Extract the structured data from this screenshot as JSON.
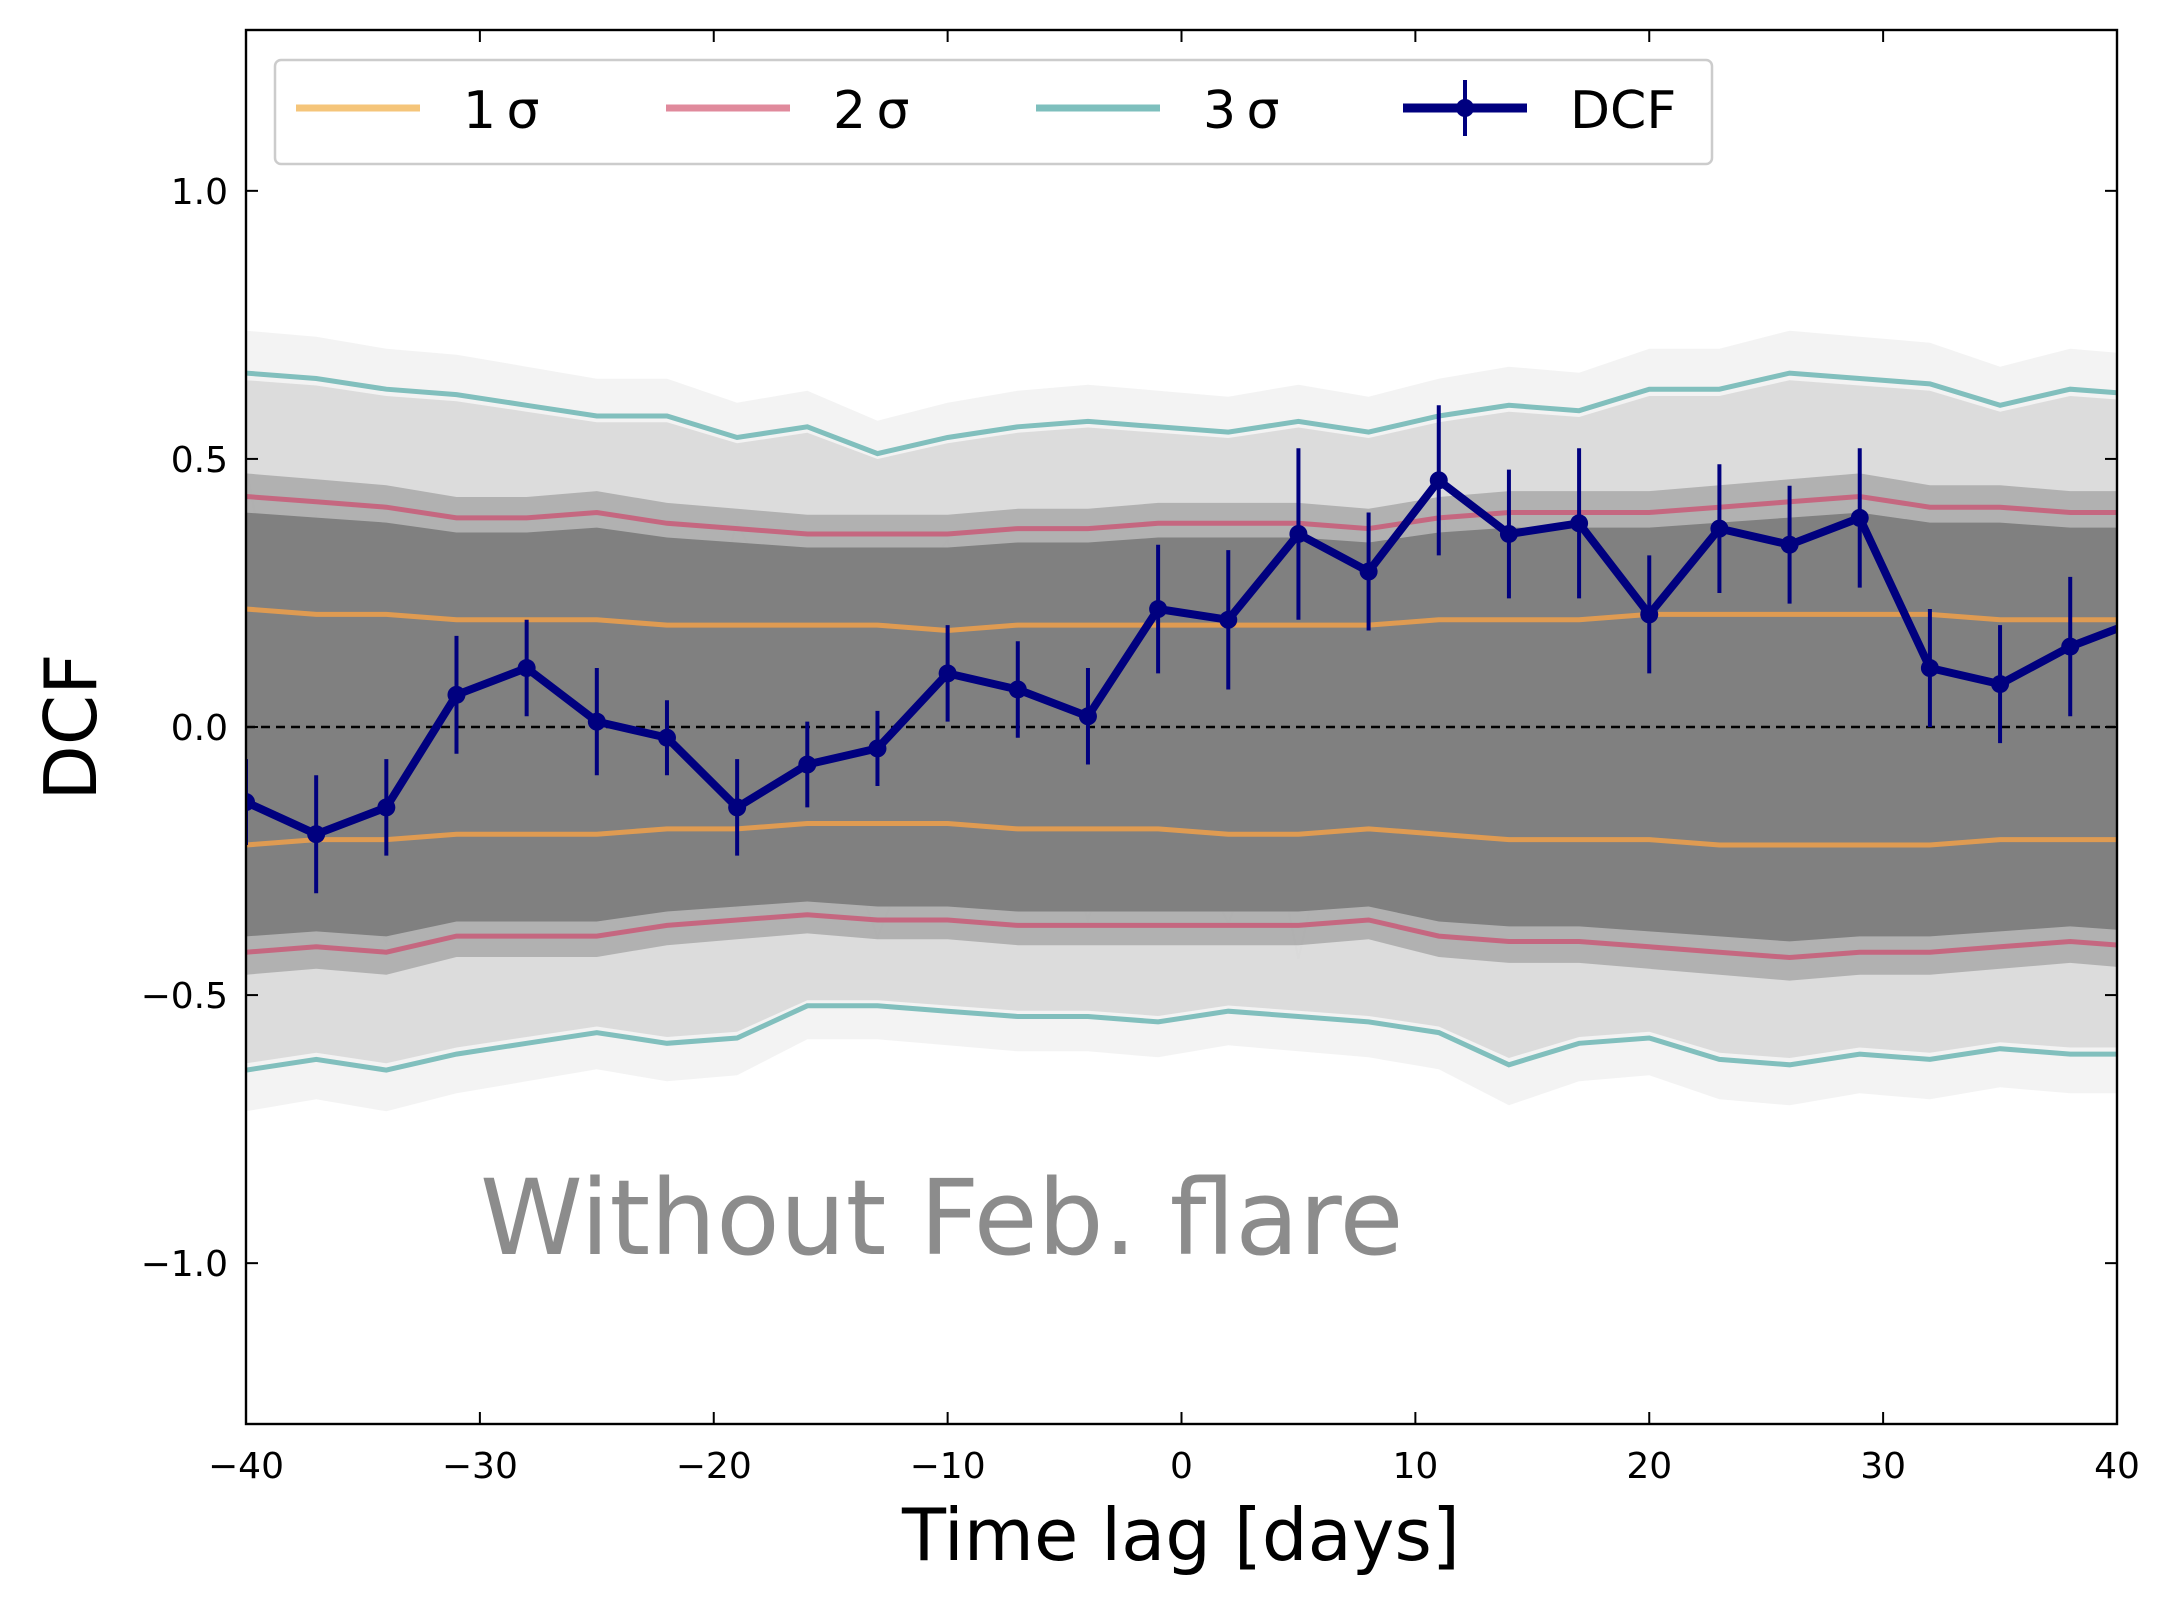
{
  "chart_data": {
    "type": "line",
    "xlabel": "Time lag [days]",
    "ylabel": "DCF",
    "xlim": [
      -40,
      40
    ],
    "ylim": [
      -1.3,
      1.3
    ],
    "xticks": [
      -40,
      -30,
      -20,
      -10,
      0,
      10,
      20,
      30,
      40
    ],
    "xtick_labels": [
      "−40",
      "−30",
      "−20",
      "−10",
      "0",
      "10",
      "20",
      "30",
      "40"
    ],
    "yticks": [
      -1.0,
      -0.5,
      0.0,
      0.5,
      1.0
    ],
    "ytick_labels": [
      "−1.0",
      "−0.5",
      "0.0",
      "0.5",
      "1.0"
    ],
    "annotation": "Without Feb. flare",
    "legend_position": "top-left",
    "legend_entries": [
      {
        "label": "1 σ",
        "color": "#f5c57a",
        "kind": "line"
      },
      {
        "label": "2 σ",
        "color": "#e08a9c",
        "kind": "line"
      },
      {
        "label": "3 σ",
        "color": "#7ebfbd",
        "kind": "line"
      },
      {
        "label": "DCF",
        "color": "#00007f",
        "kind": "errorbar"
      }
    ],
    "zero_line": {
      "y": 0,
      "style": "dashed",
      "color": "#000000"
    },
    "simulation_band": {
      "color": "#808080"
    },
    "x": [
      -40,
      -37,
      -34,
      -31,
      -28,
      -25,
      -22,
      -19,
      -16,
      -13,
      -10,
      -7,
      -4,
      -1,
      2,
      5,
      8,
      11,
      14,
      17,
      20,
      23,
      26,
      29,
      32,
      35,
      38,
      41
    ],
    "series": [
      {
        "name": "DCF",
        "color": "#00007f",
        "x": [
          -40,
          -37,
          -34,
          -31,
          -28,
          -25,
          -22,
          -19,
          -16,
          -13,
          -10,
          -7,
          -4,
          -1,
          2,
          5,
          8,
          11,
          14,
          17,
          20,
          23,
          26,
          29,
          32,
          35,
          38,
          41
        ],
        "values": [
          -0.14,
          -0.2,
          -0.15,
          0.06,
          0.11,
          0.01,
          -0.02,
          -0.15,
          -0.07,
          -0.04,
          0.1,
          0.07,
          0.02,
          0.22,
          0.2,
          0.36,
          0.29,
          0.46,
          0.36,
          0.38,
          0.21,
          0.37,
          0.34,
          0.39,
          0.11,
          0.08,
          0.15,
          0.2
        ],
        "errors": [
          0.08,
          0.11,
          0.09,
          0.11,
          0.09,
          0.1,
          0.07,
          0.09,
          0.08,
          0.07,
          0.09,
          0.09,
          0.09,
          0.12,
          0.13,
          0.16,
          0.11,
          0.14,
          0.12,
          0.14,
          0.11,
          0.12,
          0.11,
          0.13,
          0.11,
          0.11,
          0.13,
          0.12
        ]
      },
      {
        "name": "1 σ",
        "color": "#f0a04a",
        "upper": [
          0.22,
          0.21,
          0.21,
          0.2,
          0.2,
          0.2,
          0.19,
          0.19,
          0.19,
          0.19,
          0.18,
          0.19,
          0.19,
          0.19,
          0.19,
          0.19,
          0.19,
          0.2,
          0.2,
          0.2,
          0.21,
          0.21,
          0.21,
          0.21,
          0.21,
          0.2,
          0.2,
          0.2
        ],
        "lower": [
          -0.22,
          -0.21,
          -0.21,
          -0.2,
          -0.2,
          -0.2,
          -0.19,
          -0.19,
          -0.18,
          -0.18,
          -0.18,
          -0.19,
          -0.19,
          -0.19,
          -0.2,
          -0.2,
          -0.19,
          -0.2,
          -0.21,
          -0.21,
          -0.21,
          -0.22,
          -0.22,
          -0.22,
          -0.22,
          -0.21,
          -0.21,
          -0.21
        ]
      },
      {
        "name": "2 σ",
        "color": "#c95a78",
        "upper": [
          0.43,
          0.42,
          0.41,
          0.39,
          0.39,
          0.4,
          0.38,
          0.37,
          0.36,
          0.36,
          0.36,
          0.37,
          0.37,
          0.38,
          0.38,
          0.38,
          0.37,
          0.39,
          0.4,
          0.4,
          0.4,
          0.41,
          0.42,
          0.43,
          0.41,
          0.41,
          0.4,
          0.4
        ],
        "lower": [
          -0.42,
          -0.41,
          -0.42,
          -0.39,
          -0.39,
          -0.39,
          -0.37,
          -0.36,
          -0.35,
          -0.36,
          -0.36,
          -0.37,
          -0.37,
          -0.37,
          -0.37,
          -0.37,
          -0.36,
          -0.39,
          -0.4,
          -0.4,
          -0.41,
          -0.42,
          -0.43,
          -0.42,
          -0.42,
          -0.41,
          -0.4,
          -0.41
        ]
      },
      {
        "name": "3 σ",
        "color": "#6cb5b3",
        "upper": [
          0.66,
          0.65,
          0.63,
          0.62,
          0.6,
          0.58,
          0.58,
          0.54,
          0.56,
          0.51,
          0.54,
          0.56,
          0.57,
          0.56,
          0.55,
          0.57,
          0.55,
          0.58,
          0.6,
          0.59,
          0.63,
          0.63,
          0.66,
          0.65,
          0.64,
          0.6,
          0.63,
          0.62
        ],
        "lower": [
          -0.64,
          -0.62,
          -0.64,
          -0.61,
          -0.59,
          -0.57,
          -0.59,
          -0.58,
          -0.52,
          -0.52,
          -0.53,
          -0.54,
          -0.54,
          -0.55,
          -0.53,
          -0.54,
          -0.55,
          -0.57,
          -0.63,
          -0.59,
          -0.58,
          -0.62,
          -0.63,
          -0.61,
          -0.62,
          -0.6,
          -0.61,
          -0.61
        ]
      }
    ]
  }
}
